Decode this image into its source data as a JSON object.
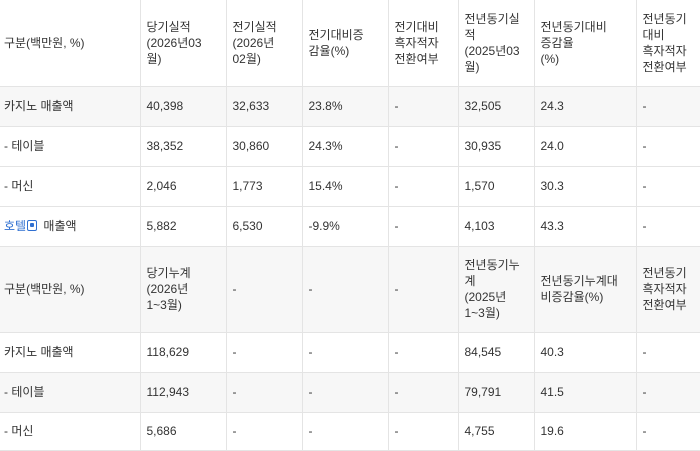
{
  "table1": {
    "headers": [
      "구분(백만원, %)",
      "당기실적\n(2026년03\n월)",
      "전기실적\n(2026년\n02월)",
      "전기대비증\n감율(%)",
      "전기대비\n흑자적자\n전환여부",
      "전년동기실\n적\n(2025년03\n월)",
      "전년동기대비\n증감율\n(%)",
      "전년동기\n대비\n흑자적자\n전환여부"
    ],
    "rows": [
      [
        "카지노 매출액",
        "40,398",
        "32,633",
        "23.8%",
        "-",
        "32,505",
        "24.3",
        "-"
      ],
      [
        "- 테이블",
        "38,352",
        "30,860",
        "24.3%",
        "-",
        "30,935",
        "24.0",
        "-"
      ],
      [
        "- 머신",
        "2,046",
        "1,773",
        "15.4%",
        "-",
        "1,570",
        "30.3",
        "-"
      ],
      [
        "호텔 매출액",
        "5,882",
        "6,530",
        "-9.9%",
        "-",
        "4,103",
        "43.3",
        "-"
      ]
    ],
    "hotel_link": "호텔",
    "hotel_rest": " 매출액"
  },
  "table2": {
    "headers": [
      "구분(백만원, %)",
      "당기누계\n(2026년\n1~3월)",
      "-",
      "-",
      "-",
      "전년동기누\n계\n(2025년\n1~3월)",
      "전년동기누계대\n비증감율(%)",
      "전년동기\n흑자적자\n전환여부"
    ],
    "rows": [
      [
        "카지노 매출액",
        "118,629",
        "-",
        "-",
        "-",
        "84,545",
        "40.3",
        "-"
      ],
      [
        "- 테이블",
        "112,943",
        "-",
        "-",
        "-",
        "79,791",
        "41.5",
        "-"
      ],
      [
        "- 머신",
        "5,686",
        "-",
        "-",
        "-",
        "4,755",
        "19.6",
        "-"
      ]
    ]
  }
}
